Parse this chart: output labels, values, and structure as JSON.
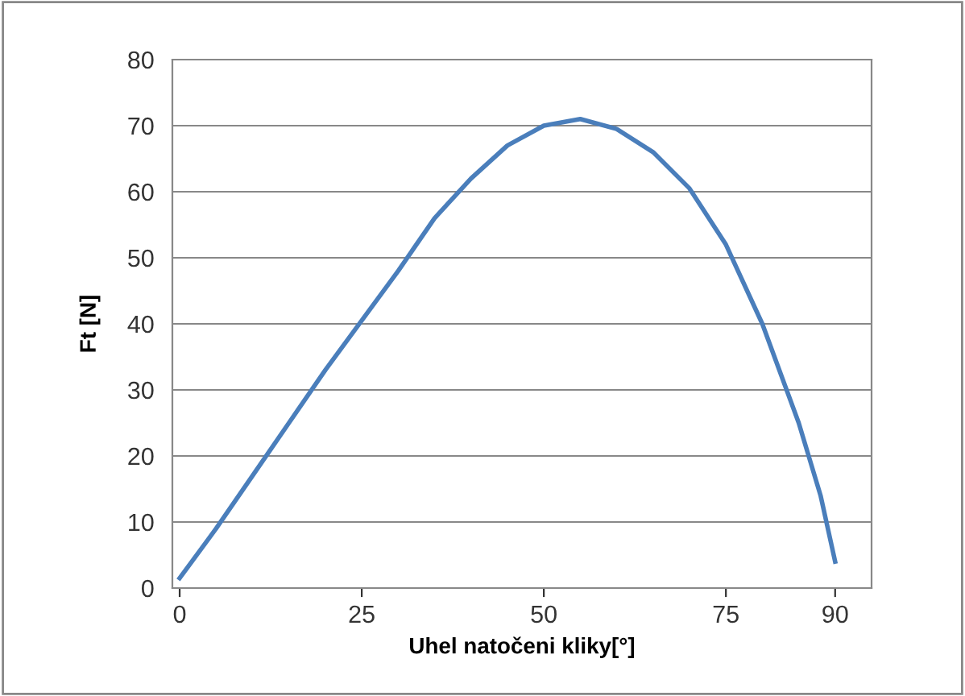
{
  "chart_data": {
    "type": "line",
    "xlabel": "Uhel natočeni kliky[°]",
    "ylabel": "Ft [N]",
    "x": [
      0,
      2,
      5,
      10,
      15,
      20,
      25,
      30,
      35,
      40,
      45,
      50,
      55,
      60,
      65,
      70,
      75,
      80,
      85,
      88,
      90
    ],
    "series": [
      {
        "color": "#4a7ebb",
        "values": [
          1.5,
          4.5,
          9,
          17,
          25,
          33,
          40.5,
          48,
          56,
          62,
          67,
          70,
          71,
          69.5,
          66,
          60.5,
          52,
          40,
          25,
          14,
          4
        ]
      }
    ],
    "xlim": [
      -1,
      95
    ],
    "xticks": [
      0,
      25,
      50,
      75,
      90
    ],
    "ylim": [
      0,
      80
    ],
    "yticks": [
      0,
      10,
      20,
      30,
      40,
      50,
      60,
      70,
      80
    ],
    "grid": "y",
    "legend": false,
    "marker": "none",
    "line_style": "solid"
  }
}
